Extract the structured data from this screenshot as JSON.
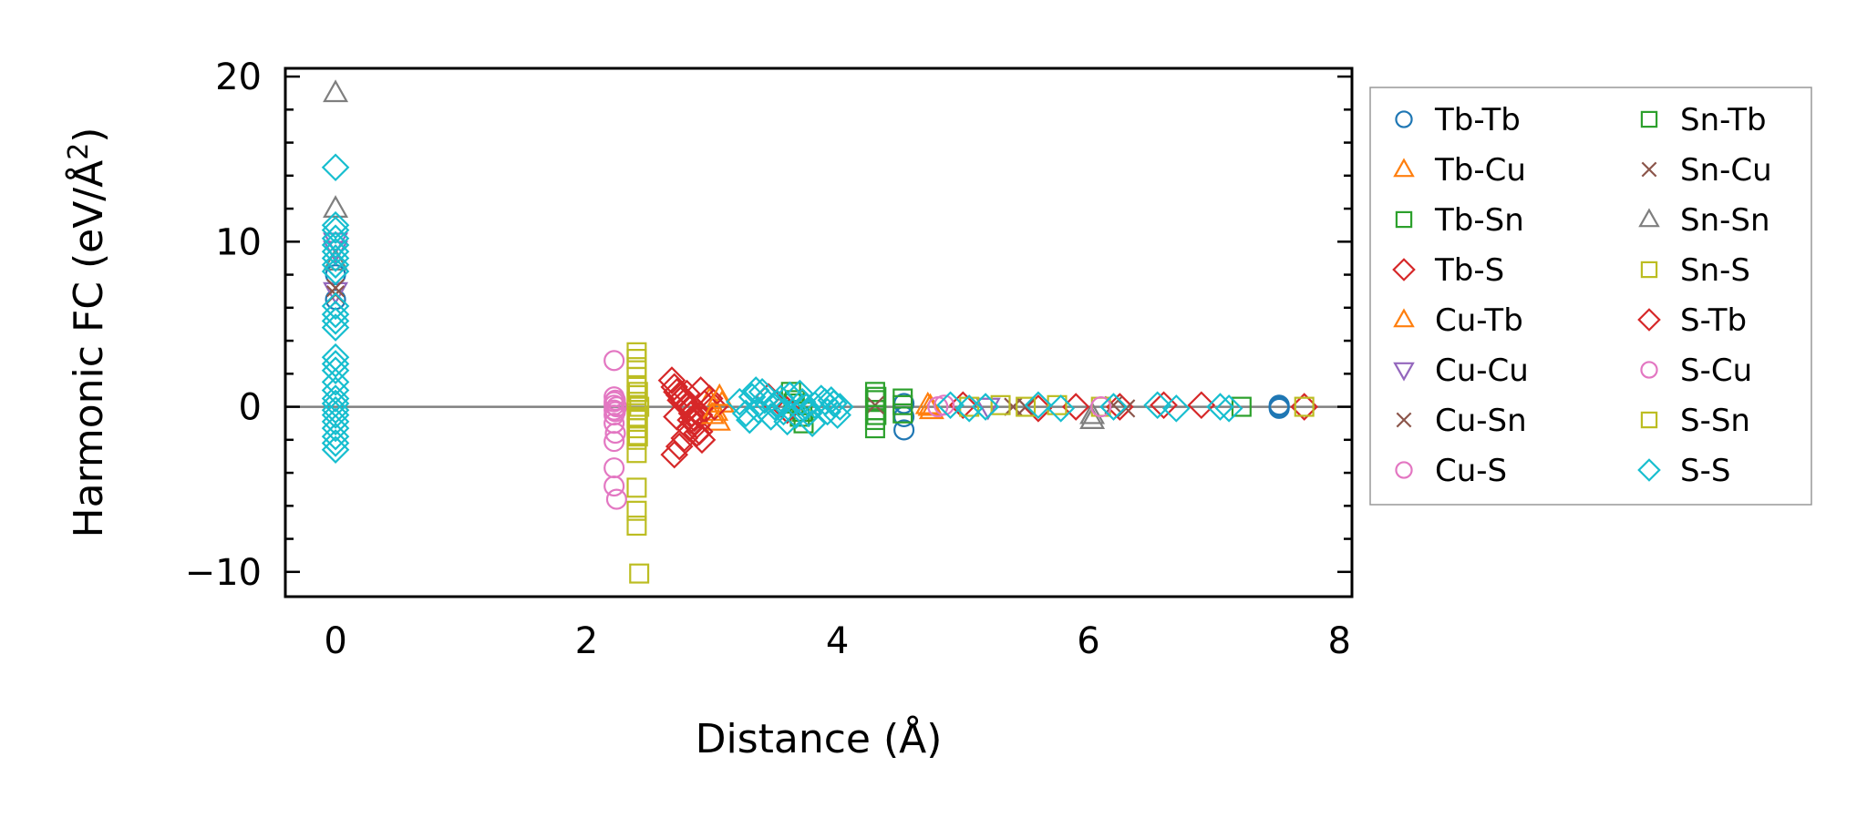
{
  "chart_data": {
    "type": "scatter",
    "title": "",
    "xlabel": "Distance (Å)",
    "ylabel_main": "Harmonic FC (eV/Å",
    "ylabel_sup": "2",
    "ylabel_close": ")",
    "xlim": [
      -0.4,
      8.1
    ],
    "ylim": [
      -11.5,
      20.5
    ],
    "xticks": [
      0,
      2,
      4,
      6,
      8
    ],
    "xtick_labels": [
      "0",
      "2",
      "4",
      "6",
      "8"
    ],
    "yticks": [
      -10,
      0,
      10,
      20
    ],
    "ytick_labels": [
      "−10",
      "0",
      "10",
      "20"
    ],
    "zero_line": true,
    "legend_position": "right, outside",
    "series": [
      {
        "name": "Tb-Tb",
        "marker": "circle",
        "color": "#1f77b4",
        "x": [
          0,
          0,
          4.53,
          4.53,
          4.53,
          7.52,
          7.52,
          7.52
        ],
        "y": [
          6.5,
          8.0,
          -1.4,
          -0.6,
          0.2,
          0.1,
          -0.1,
          0.0
        ]
      },
      {
        "name": "Tb-Cu",
        "marker": "triangle-up",
        "color": "#ff7f0e",
        "x": [
          2.98,
          3.03,
          3.05,
          3.08,
          4.72,
          4.75
        ],
        "y": [
          0.4,
          -0.3,
          -0.9,
          0.2,
          0.1,
          -0.2
        ]
      },
      {
        "name": "Tb-Sn",
        "marker": "square",
        "color": "#2ca02c",
        "x": [
          3.63,
          3.66,
          3.7,
          3.73,
          4.3,
          4.3,
          4.3,
          4.3,
          4.3,
          4.52,
          4.52,
          4.52
        ],
        "y": [
          0.9,
          0.4,
          -0.6,
          -1.0,
          0.9,
          0.4,
          -0.2,
          -0.8,
          -1.3,
          0.5,
          -0.4,
          0.1
        ]
      },
      {
        "name": "Tb-S",
        "marker": "diamond",
        "color": "#d62728",
        "x": [
          2.68,
          2.7,
          2.72,
          2.74,
          2.76,
          2.78,
          2.8,
          2.82,
          2.84,
          2.86,
          2.88,
          2.9,
          2.92,
          2.7,
          2.74,
          2.78,
          2.82,
          2.86,
          2.9,
          2.94,
          2.98,
          3.02,
          2.72,
          2.8,
          2.88,
          5.0,
          5.6,
          6.25,
          6.9,
          7.72
        ],
        "y": [
          1.6,
          1.2,
          0.9,
          0.7,
          0.5,
          0.3,
          0.1,
          -0.1,
          -0.4,
          -0.7,
          -1.1,
          -1.5,
          -2.0,
          -2.9,
          -2.4,
          -1.9,
          -1.3,
          -0.9,
          -0.5,
          0.2,
          0.5,
          0.0,
          -0.6,
          0.8,
          -1.6,
          0.1,
          -0.1,
          0.0,
          0.1,
          0.0
        ]
      },
      {
        "name": "Cu-Tb",
        "marker": "triangle-up",
        "color": "#ff7f0e",
        "x": [
          3.0,
          3.06,
          4.74
        ],
        "y": [
          -0.5,
          0.6,
          0.0
        ]
      },
      {
        "name": "Cu-Cu",
        "marker": "triangle-down",
        "color": "#9467bd",
        "x": [
          0,
          0,
          0,
          5.2
        ],
        "y": [
          7.0,
          9.5,
          10.0,
          0.0
        ]
      },
      {
        "name": "Cu-Sn",
        "marker": "x",
        "color": "#8c564b",
        "x": [
          0,
          4.3,
          5.5,
          6.3
        ],
        "y": [
          6.8,
          0.1,
          0.0,
          -0.1
        ]
      },
      {
        "name": "Cu-S",
        "marker": "circle",
        "color": "#e377c2",
        "x": [
          2.22,
          2.22,
          2.22,
          2.22,
          2.22,
          2.22,
          2.22,
          2.22,
          2.22,
          2.22,
          2.24,
          2.24,
          4.8
        ],
        "y": [
          2.8,
          0.6,
          0.3,
          0.1,
          -0.2,
          -0.5,
          -1.0,
          -2.1,
          -3.7,
          -4.8,
          -5.6,
          0.0,
          0.0
        ]
      },
      {
        "name": "Sn-Tb",
        "marker": "square",
        "color": "#2ca02c",
        "x": [
          3.65,
          3.72,
          4.31,
          4.31,
          7.22
        ],
        "y": [
          0.2,
          -0.3,
          0.6,
          -0.5,
          0.0
        ]
      },
      {
        "name": "Sn-Cu",
        "marker": "x",
        "color": "#8c564b",
        "x": [
          0,
          5.4,
          6.2
        ],
        "y": [
          7.2,
          0.0,
          0.1
        ]
      },
      {
        "name": "Sn-Sn",
        "marker": "triangle-up",
        "color": "#7f7f7f",
        "x": [
          0,
          0,
          0,
          6.03,
          6.03
        ],
        "y": [
          19.0,
          12.0,
          8.8,
          -0.5,
          -0.8
        ]
      },
      {
        "name": "Sn-S",
        "marker": "square",
        "color": "#bcbd22",
        "x": [
          2.4,
          2.4,
          2.4,
          2.4,
          2.4,
          2.4,
          2.4,
          2.4,
          2.4,
          2.4,
          2.4,
          2.4,
          2.4,
          2.4,
          2.4,
          2.42,
          2.42,
          5.3,
          5.5,
          6.1,
          7.72
        ],
        "y": [
          3.3,
          2.9,
          2.4,
          1.8,
          1.2,
          0.7,
          0.3,
          -0.2,
          -0.7,
          -1.3,
          -2.0,
          -2.8,
          -4.9,
          -6.3,
          -7.2,
          -10.1,
          0.0,
          0.1,
          0.0,
          0.0,
          0.0
        ]
      },
      {
        "name": "S-Tb",
        "marker": "diamond",
        "color": "#d62728",
        "x": [
          2.75,
          2.83,
          2.91,
          3.45,
          3.6,
          5.9,
          6.6
        ],
        "y": [
          0.4,
          -0.8,
          1.0,
          0.6,
          -0.2,
          0.0,
          0.1
        ]
      },
      {
        "name": "S-Cu",
        "marker": "circle",
        "color": "#e377c2",
        "x": [
          2.23,
          2.23,
          2.23,
          4.85,
          6.1
        ],
        "y": [
          0.4,
          -0.3,
          -1.6,
          0.1,
          0.0
        ]
      },
      {
        "name": "S-Sn",
        "marker": "square",
        "color": "#bcbd22",
        "x": [
          2.41,
          2.41,
          2.41,
          5.05,
          5.75
        ],
        "y": [
          0.9,
          -0.6,
          -1.8,
          0.0,
          0.1
        ]
      },
      {
        "name": "S-S",
        "marker": "diamond",
        "color": "#17becf",
        "x": [
          0,
          0,
          0,
          0,
          0,
          0,
          0,
          0,
          0,
          0,
          0,
          0,
          0,
          0,
          0,
          0,
          0,
          0,
          0,
          0,
          0,
          0,
          0,
          0,
          0,
          0,
          0,
          3.22,
          3.27,
          3.32,
          3.37,
          3.42,
          3.47,
          3.52,
          3.57,
          3.62,
          3.67,
          3.72,
          3.77,
          3.82,
          3.87,
          3.92,
          3.97,
          4.02,
          3.3,
          3.4,
          3.5,
          3.6,
          3.7,
          3.8,
          3.9,
          4.0,
          3.35,
          3.55,
          3.75,
          3.95,
          4.9,
          5.05,
          5.18,
          5.6,
          5.78,
          6.2,
          6.55,
          6.7,
          7.05,
          7.12
        ],
        "y": [
          14.5,
          11.0,
          10.7,
          10.2,
          9.8,
          9.4,
          9.0,
          8.6,
          8.2,
          6.1,
          5.6,
          5.2,
          4.8,
          3.0,
          2.6,
          2.2,
          1.5,
          1.0,
          0.5,
          0.2,
          -0.2,
          -0.5,
          -0.9,
          -1.3,
          -1.8,
          -2.2,
          -2.6,
          0.3,
          -0.4,
          0.6,
          -0.2,
          0.4,
          -0.6,
          0.2,
          -0.3,
          0.7,
          -0.5,
          0.3,
          -0.4,
          0.1,
          0.5,
          -0.3,
          0.2,
          0.0,
          -0.8,
          0.9,
          0.0,
          -0.9,
          0.8,
          -1.0,
          0.3,
          -0.5,
          1.0,
          0.5,
          0.0,
          0.4,
          0.1,
          -0.1,
          0.0,
          0.1,
          -0.1,
          0.0,
          0.1,
          -0.1,
          0.0,
          -0.1
        ]
      }
    ]
  }
}
